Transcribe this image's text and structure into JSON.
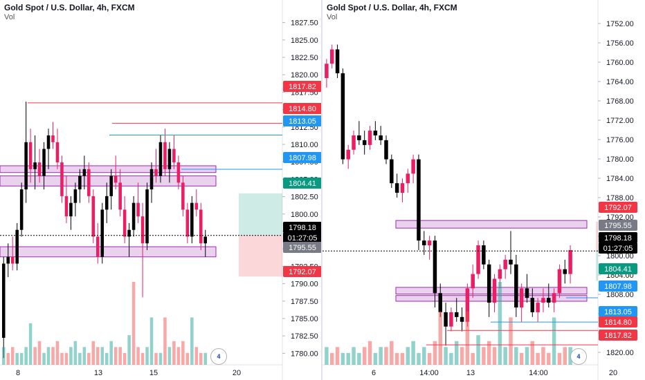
{
  "left": {
    "title": "Gold Spot / U.S. Dollar, 4h, FXCM",
    "vol_label": "Vol",
    "price_ticks": [
      "1827.50",
      "1825.00",
      "1822.50",
      "1820.00",
      "1817.50",
      "1815.00",
      "1812.50",
      "1810.00",
      "1807.50",
      "1805.00",
      "1802.50",
      "1800.00",
      "1797.50",
      "1795.00",
      "1792.50",
      "1790.00",
      "1787.50",
      "1785.00",
      "1782.50",
      "1780.00"
    ],
    "x_ticks": [
      "8",
      "13",
      "15",
      "20"
    ],
    "price_badges": [
      {
        "text": "1817.82",
        "color": "#f23645"
      },
      {
        "text": "1814.80",
        "color": "#f23645"
      },
      {
        "text": "1813.05",
        "color": "#2196f3"
      },
      {
        "text": "1807.98",
        "color": "#2196f3"
      },
      {
        "text": "1804.41",
        "color": "#089981"
      },
      {
        "text": "1798.18",
        "color": "#000000"
      },
      {
        "text": "01:27:05",
        "color": "#000000"
      },
      {
        "text": "1795.55",
        "color": "#787b86"
      },
      {
        "text": "1792.07",
        "color": "#f23645"
      }
    ],
    "logo_text": "4"
  },
  "right": {
    "title": "Gold Spot / U.S. Dollar, 4h, FXCM",
    "vol_label": "Vol",
    "price_ticks": [
      "1752.00",
      "1756.00",
      "1760.00",
      "1764.00",
      "1768.00",
      "1772.00",
      "1776.00",
      "1780.00",
      "1784.00",
      "1788.00",
      "1792.00",
      "1796.00",
      "1800.00",
      "1804.00",
      "1808.00",
      "1812.00",
      "1816.00",
      "1820.00"
    ],
    "x_ticks": [
      "6",
      "14:00",
      "13",
      "14:00",
      "20"
    ],
    "price_badges": [
      {
        "text": "1792.07",
        "color": "#f23645"
      },
      {
        "text": "1795.55",
        "color": "#787b86"
      },
      {
        "text": "1798.18",
        "color": "#000000"
      },
      {
        "text": "01:27:05",
        "color": "#000000"
      },
      {
        "text": "1804.41",
        "color": "#089981"
      },
      {
        "text": "1807.98",
        "color": "#2196f3"
      },
      {
        "text": "1813.05",
        "color": "#2196f3"
      },
      {
        "text": "1814.80",
        "color": "#f23645"
      },
      {
        "text": "1817.82",
        "color": "#f23645"
      }
    ],
    "logo_text": "4"
  },
  "chart_data": [
    {
      "type": "candlestick",
      "title": "Gold Spot / U.S. Dollar, 4h, FXCM",
      "ylim": [
        1779,
        1830
      ],
      "inverted": false,
      "up_color": "#000000",
      "down_color": "#e91e63",
      "candles": [
        [
          1783,
          1795,
          1780,
          1794
        ],
        [
          1794,
          1797,
          1792,
          1795
        ],
        [
          1795,
          1798,
          1793,
          1794
        ],
        [
          1794,
          1800,
          1793,
          1799
        ],
        [
          1799,
          1806,
          1798,
          1805
        ],
        [
          1805,
          1818,
          1803,
          1812
        ],
        [
          1812,
          1814,
          1806,
          1808
        ],
        [
          1808,
          1813,
          1805,
          1809
        ],
        [
          1809,
          1811,
          1806,
          1807
        ],
        [
          1807,
          1812,
          1805,
          1811
        ],
        [
          1811,
          1814,
          1808,
          1813
        ],
        [
          1813,
          1815,
          1811,
          1812
        ],
        [
          1812,
          1814,
          1808,
          1809
        ],
        [
          1809,
          1810,
          1803,
          1804
        ],
        [
          1804,
          1807,
          1800,
          1801
        ],
        [
          1801,
          1804,
          1799,
          1803
        ],
        [
          1803,
          1806,
          1801,
          1805
        ],
        [
          1805,
          1808,
          1803,
          1807
        ],
        [
          1807,
          1810,
          1805,
          1808
        ],
        [
          1808,
          1809,
          1803,
          1804
        ],
        [
          1804,
          1805,
          1797,
          1798
        ],
        [
          1798,
          1800,
          1794,
          1795
        ],
        [
          1795,
          1803,
          1794,
          1802
        ],
        [
          1802,
          1806,
          1800,
          1804
        ],
        [
          1804,
          1808,
          1802,
          1807
        ],
        [
          1807,
          1810,
          1805,
          1806
        ],
        [
          1806,
          1808,
          1801,
          1802
        ],
        [
          1802,
          1804,
          1797,
          1798
        ],
        [
          1798,
          1800,
          1795,
          1799
        ],
        [
          1799,
          1804,
          1798,
          1803
        ],
        [
          1803,
          1806,
          1800,
          1801
        ],
        [
          1801,
          1803,
          1789,
          1797
        ],
        [
          1797,
          1806,
          1796,
          1805
        ],
        [
          1805,
          1809,
          1803,
          1808
        ],
        [
          1808,
          1811,
          1806,
          1807
        ],
        [
          1807,
          1813,
          1806,
          1812
        ],
        [
          1812,
          1814,
          1807,
          1808
        ],
        [
          1808,
          1812,
          1806,
          1811
        ],
        [
          1811,
          1813,
          1808,
          1809
        ],
        [
          1809,
          1810,
          1805,
          1806
        ],
        [
          1806,
          1807,
          1801,
          1802
        ],
        [
          1802,
          1803,
          1797,
          1798
        ],
        [
          1798,
          1804,
          1797,
          1803
        ],
        [
          1803,
          1805,
          1801,
          1802
        ],
        [
          1802,
          1803,
          1796,
          1797
        ],
        [
          1797,
          1799,
          1795,
          1798
        ]
      ],
      "volumes": [
        3,
        2,
        3,
        2,
        2,
        3,
        7,
        3,
        4,
        2,
        3,
        3,
        4,
        2,
        2,
        3,
        4,
        2,
        3,
        2,
        4,
        3,
        3,
        2,
        4,
        3,
        3,
        2,
        5,
        14,
        3,
        2,
        3,
        8,
        2,
        2,
        8,
        3,
        4,
        3,
        4,
        2,
        8,
        3,
        2,
        2
      ],
      "volume_up": [
        true,
        false,
        false,
        true,
        true,
        true,
        true,
        false,
        false,
        true,
        true,
        false,
        false,
        false,
        false,
        true,
        true,
        true,
        true,
        false,
        false,
        false,
        true,
        true,
        true,
        false,
        false,
        false,
        true,
        false,
        false,
        false,
        true,
        true,
        false,
        true,
        false,
        true,
        false,
        false,
        false,
        false,
        true,
        false,
        false,
        true
      ],
      "horizontal_lines": [
        {
          "price": 1817.82,
          "color": "#f23645"
        },
        {
          "price": 1814.8,
          "color": "#f23645"
        },
        {
          "price": 1813.05,
          "color": "#2196f3"
        },
        {
          "price": 1807.98,
          "color": "#2196f3"
        }
      ],
      "zones": [
        {
          "from": 1807.5,
          "to": 1808.5
        },
        {
          "from": 1805.5,
          "to": 1807.0
        },
        {
          "from": 1795.0,
          "to": 1796.5
        }
      ],
      "position": {
        "entry": 1798.18,
        "target": 1804.41,
        "stop": 1792.07
      }
    },
    {
      "type": "candlestick",
      "title": "Gold Spot / U.S. Dollar, 4h, FXCM",
      "ylim": [
        1750,
        1822
      ],
      "inverted": true,
      "up_color": "#000000",
      "down_color": "#e91e63",
      "candles": [
        [
          1762,
          1764,
          1758,
          1759
        ],
        [
          1759,
          1760,
          1755,
          1756
        ],
        [
          1756,
          1762,
          1755,
          1761
        ],
        [
          1761,
          1780,
          1760,
          1779
        ],
        [
          1779,
          1781,
          1776,
          1777
        ],
        [
          1777,
          1778,
          1773,
          1774
        ],
        [
          1774,
          1776,
          1771,
          1775
        ],
        [
          1775,
          1778,
          1773,
          1776
        ],
        [
          1776,
          1777,
          1772,
          1773
        ],
        [
          1773,
          1775,
          1771,
          1774
        ],
        [
          1774,
          1776,
          1772,
          1775
        ],
        [
          1775,
          1780,
          1774,
          1779
        ],
        [
          1779,
          1785,
          1778,
          1784
        ],
        [
          1784,
          1787,
          1782,
          1786
        ],
        [
          1786,
          1788,
          1783,
          1784
        ],
        [
          1784,
          1786,
          1781,
          1782
        ],
        [
          1782,
          1784,
          1778,
          1779
        ],
        [
          1779,
          1798,
          1778,
          1796
        ],
        [
          1796,
          1799,
          1794,
          1797
        ],
        [
          1797,
          1800,
          1795,
          1796
        ],
        [
          1796,
          1810,
          1795,
          1807
        ],
        [
          1807,
          1812,
          1805,
          1811
        ],
        [
          1811,
          1818,
          1809,
          1814
        ],
        [
          1814,
          1815,
          1810,
          1811
        ],
        [
          1811,
          1813,
          1808,
          1812
        ],
        [
          1812,
          1815,
          1810,
          1813
        ],
        [
          1813,
          1814,
          1805,
          1806
        ],
        [
          1806,
          1808,
          1801,
          1803
        ],
        [
          1803,
          1804,
          1796,
          1797
        ],
        [
          1797,
          1802,
          1796,
          1801
        ],
        [
          1801,
          1812,
          1800,
          1809
        ],
        [
          1809,
          1811,
          1803,
          1804
        ],
        [
          1804,
          1806,
          1801,
          1802
        ],
        [
          1802,
          1804,
          1799,
          1800
        ],
        [
          1800,
          1803,
          1794,
          1801
        ],
        [
          1801,
          1812,
          1799,
          1810
        ],
        [
          1810,
          1813,
          1805,
          1806
        ],
        [
          1806,
          1809,
          1803,
          1808
        ],
        [
          1808,
          1812,
          1806,
          1811
        ],
        [
          1811,
          1813,
          1808,
          1809
        ],
        [
          1809,
          1811,
          1806,
          1808
        ],
        [
          1808,
          1810,
          1805,
          1809
        ],
        [
          1809,
          1811,
          1806,
          1807
        ],
        [
          1807,
          1808,
          1801,
          1802
        ],
        [
          1802,
          1805,
          1800,
          1803
        ],
        [
          1803,
          1805,
          1797,
          1798
        ]
      ],
      "volumes": [
        3,
        2,
        3,
        2,
        2,
        3,
        2,
        3,
        4,
        2,
        3,
        3,
        4,
        2,
        2,
        3,
        4,
        2,
        3,
        2,
        4,
        9,
        3,
        2,
        4,
        3,
        9,
        2,
        5,
        3,
        4,
        3,
        14,
        3,
        8,
        3,
        2,
        3,
        4,
        2,
        3,
        2,
        8,
        2,
        3,
        3
      ],
      "volume_up": [
        true,
        false,
        false,
        true,
        true,
        true,
        true,
        false,
        false,
        true,
        true,
        false,
        false,
        false,
        false,
        true,
        true,
        true,
        true,
        false,
        false,
        false,
        true,
        true,
        true,
        false,
        false,
        false,
        true,
        false,
        false,
        false,
        true,
        true,
        false,
        true,
        false,
        true,
        false,
        false,
        false,
        false,
        true,
        false,
        false,
        true
      ],
      "horizontal_lines": [
        {
          "price": 1813.05,
          "color": "#2196f3"
        },
        {
          "price": 1814.8,
          "color": "#f23645"
        },
        {
          "price": 1817.82,
          "color": "#f23645"
        },
        {
          "price": 1807.98,
          "color": "#2196f3"
        }
      ],
      "zones": [
        {
          "from": 1791.8,
          "to": 1793.4
        },
        {
          "from": 1805.8,
          "to": 1807.2
        },
        {
          "from": 1807.5,
          "to": 1808.7
        }
      ],
      "position": {
        "entry": 1798.18,
        "target": 1804.41,
        "stop": 1792.07
      }
    }
  ]
}
